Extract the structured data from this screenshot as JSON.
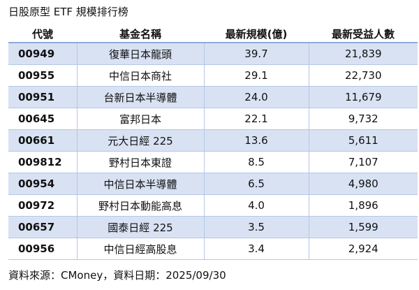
{
  "title": "日股原型 ETF 規模排行榜",
  "table": {
    "header": [
      "代號",
      "基金名稱",
      "最新規模(億)",
      "最新受益人數"
    ],
    "rows": [
      [
        "00949",
        "復華日本龍頭",
        "39.7",
        "21,839"
      ],
      [
        "00955",
        "中信日本商社",
        "29.1",
        "22,730"
      ],
      [
        "00951",
        "台新日本半導體",
        "24.0",
        "11,679"
      ],
      [
        "00645",
        "富邦日本",
        "22.1",
        "9,732"
      ],
      [
        "00661",
        "元大日經 225",
        "13.6",
        "5,611"
      ],
      [
        "009812",
        "野村日本東證",
        "8.5",
        "7,107"
      ],
      [
        "00954",
        "中信日本半導體",
        "6.5",
        "4,980"
      ],
      [
        "00972",
        "野村日本動能高息",
        "4.0",
        "1,896"
      ],
      [
        "00657",
        "國泰日經 225",
        "3.5",
        "1,599"
      ],
      [
        "00956",
        "中信日經高股息",
        "3.4",
        "2,924"
      ]
    ]
  },
  "footer": "資料來源：CMoney，資料日期：2025/09/30"
}
